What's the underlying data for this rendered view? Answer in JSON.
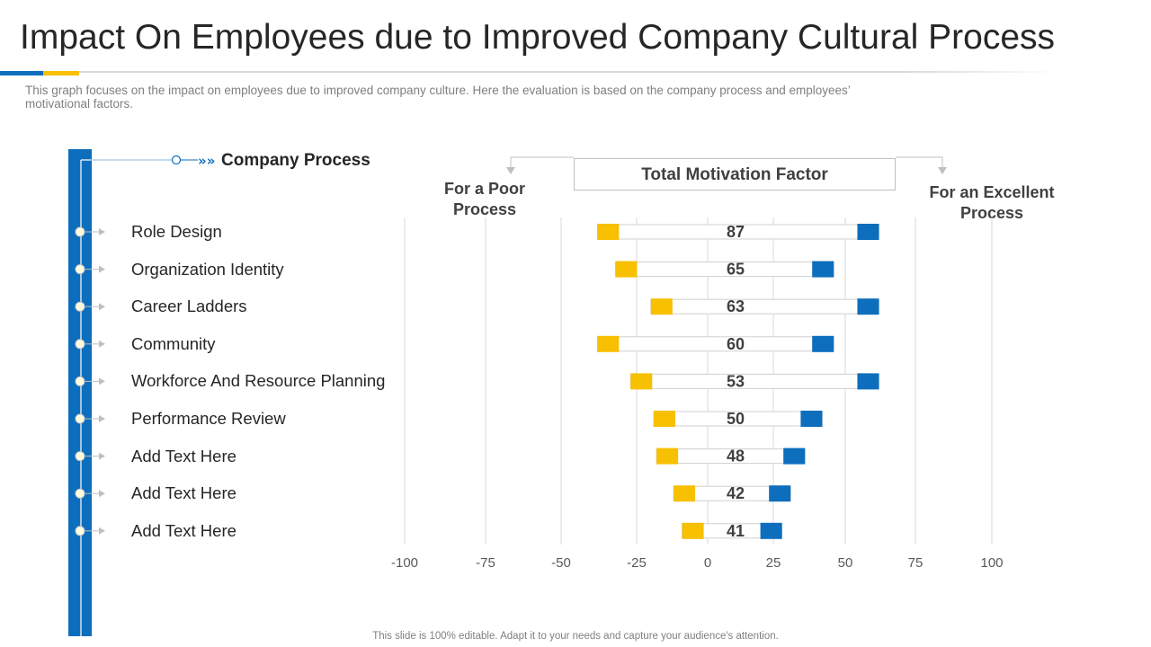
{
  "page": {
    "title": "Impact On Employees due to Improved Company Cultural Process",
    "subtitle": "This graph focuses on the impact on employees due to improved company culture. Here the evaluation is based on the company process and employees’ motivational factors.",
    "footer": "This slide is 100% editable. Adapt it to your needs and capture your audience's attention.",
    "colors": {
      "accent_blue": "#0d6ebd",
      "accent_yellow": "#f7c000"
    }
  },
  "left_panel": {
    "header": "Company Process",
    "header_icon": "double-chevron-right-icon"
  },
  "headers": {
    "poor": "For a Poor Process",
    "total": "Total Motivation Factor",
    "excellent": "For an Excellent Process"
  },
  "chart_data": {
    "type": "bar",
    "subtype": "diverging-range",
    "categories": [
      "Role Design",
      "Organization Identity",
      "Career Ladders",
      "Community",
      "Workforce And Resource Planning",
      "Performance Review",
      "Add Text Here",
      "Add Text Here",
      "Add Text Here"
    ],
    "series": [
      {
        "name": "For a Poor Process",
        "color": "#f7c000",
        "values": [
          -38,
          -32,
          -20,
          -38,
          -27,
          -19,
          -18,
          -12,
          -9
        ]
      },
      {
        "name": "For an Excellent Process",
        "color": "#0d6ebd",
        "values": [
          62,
          46,
          62,
          46,
          62,
          42,
          36,
          31,
          28
        ]
      }
    ],
    "total_motivation_factor": [
      87,
      65,
      63,
      60,
      53,
      50,
      48,
      42,
      41
    ],
    "xlim": [
      -100,
      100
    ],
    "xticks": [
      -100,
      -75,
      -50,
      -25,
      0,
      25,
      50,
      75,
      100
    ],
    "grid": true
  }
}
